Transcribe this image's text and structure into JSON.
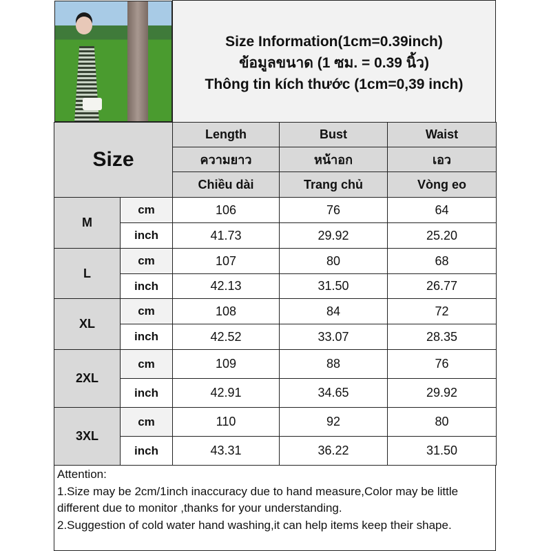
{
  "header": {
    "line1": "Size Information(1cm=0.39inch)",
    "line2": "ข้อมูลขนาด (1 ซม. = 0.39 นิ้ว)",
    "line3": "Thông tin kích thước (1cm=0,39 inch)"
  },
  "size_label": "Size",
  "columns": [
    {
      "en": "Length",
      "th": "ความยาว",
      "vi": "Chiều dài"
    },
    {
      "en": "Bust",
      "th": "หน้าอก",
      "vi": "Trang chủ"
    },
    {
      "en": "Waist",
      "th": "เอว",
      "vi": "Vòng eo"
    }
  ],
  "units": {
    "cm": "cm",
    "inch": "inch"
  },
  "rows": [
    {
      "size": "M",
      "cm": [
        "106",
        "76",
        "64"
      ],
      "inch": [
        "41.73",
        "29.92",
        "25.20"
      ]
    },
    {
      "size": "L",
      "cm": [
        "107",
        "80",
        "68"
      ],
      "inch": [
        "42.13",
        "31.50",
        "26.77"
      ]
    },
    {
      "size": "XL",
      "cm": [
        "108",
        "84",
        "72"
      ],
      "inch": [
        "42.52",
        "33.07",
        "28.35"
      ]
    },
    {
      "size": "2XL",
      "cm": [
        "109",
        "88",
        "76"
      ],
      "inch": [
        "42.91",
        "34.65",
        "29.92"
      ]
    },
    {
      "size": "3XL",
      "cm": [
        "110",
        "92",
        "80"
      ],
      "inch": [
        "43.31",
        "36.22",
        "31.50"
      ]
    }
  ],
  "attention": {
    "title": "Attention:",
    "note1": "1.Size may be 2cm/1inch inaccuracy due to hand measure,Color may be little different due to monitor ,thanks for your understanding.",
    "note2": "2.Suggestion of cold water hand washing,it can help items keep their shape."
  }
}
